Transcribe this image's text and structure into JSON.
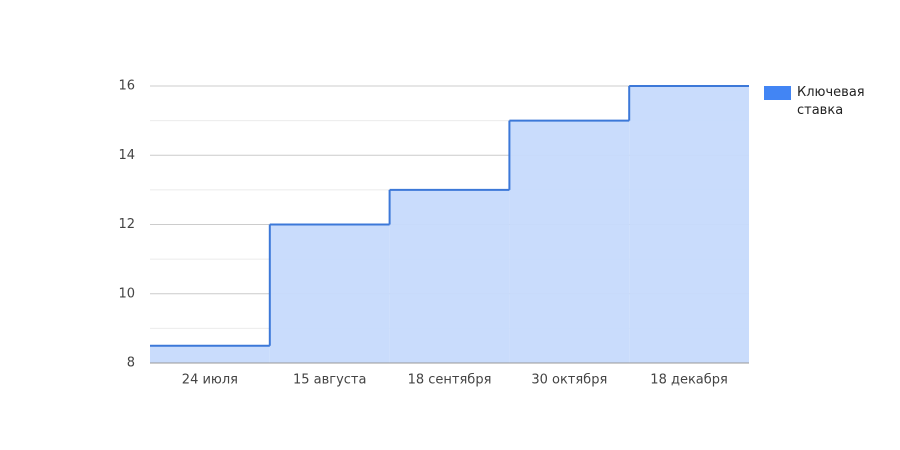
{
  "chart_data": {
    "type": "stepped-area",
    "categories": [
      "24 июля",
      "15 августа",
      "18 сентября",
      "30 октября",
      "18 декабря"
    ],
    "series": [
      {
        "name": "Ключевая ставка",
        "color": "#3c78d8",
        "fill": "#c6dafc",
        "values": [
          8.5,
          12,
          13,
          15,
          16
        ]
      }
    ],
    "ylim": [
      8,
      16
    ],
    "yticks": [
      8,
      10,
      12,
      14,
      16
    ],
    "minor_yticks": [
      9,
      11,
      13,
      15
    ],
    "grid": true,
    "legend": "right"
  }
}
